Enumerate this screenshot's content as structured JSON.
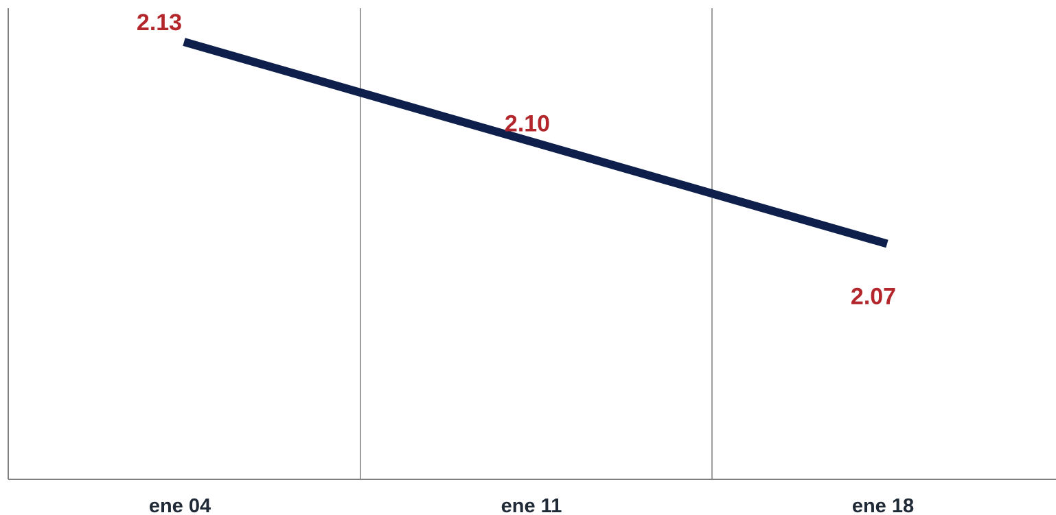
{
  "chart_data": {
    "type": "line",
    "categories": [
      "ene 04",
      "ene 11",
      "ene 18"
    ],
    "series": [
      {
        "values": [
          2.13,
          2.1,
          2.07
        ],
        "data_labels": [
          "2.13",
          "2.10",
          "2.07"
        ]
      }
    ],
    "ylim": [
      2.0,
      2.14
    ],
    "grid": "vertical",
    "legend": "none",
    "colors": {
      "line": "#0d1f4a",
      "data_label": "#b3262b",
      "axis": "#7f7f7f",
      "grid": "#7f7f7f",
      "tick_label": "#1f2a36"
    }
  }
}
